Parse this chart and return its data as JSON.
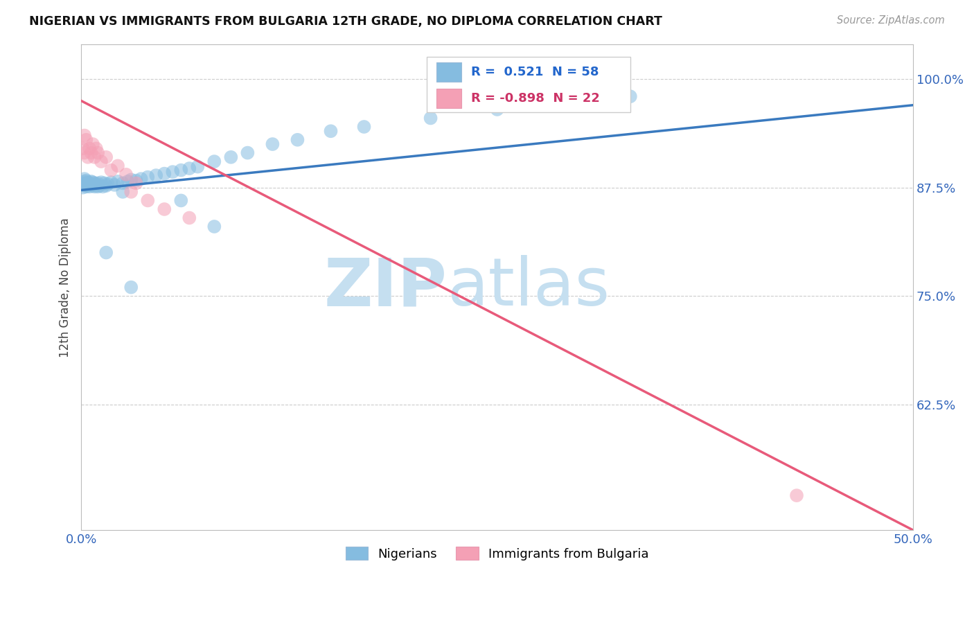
{
  "title": "NIGERIAN VS IMMIGRANTS FROM BULGARIA 12TH GRADE, NO DIPLOMA CORRELATION CHART",
  "source": "Source: ZipAtlas.com",
  "ylabel": "12th Grade, No Diploma",
  "xlim": [
    0.0,
    0.5
  ],
  "ylim": [
    0.48,
    1.04
  ],
  "xticks": [
    0.0,
    0.05,
    0.1,
    0.15,
    0.2,
    0.25,
    0.3,
    0.35,
    0.4,
    0.45,
    0.5
  ],
  "xticklabels": [
    "0.0%",
    "",
    "",
    "",
    "",
    "",
    "",
    "",
    "",
    "",
    "50.0%"
  ],
  "yticks": [
    0.625,
    0.75,
    0.875,
    1.0
  ],
  "yticklabels": [
    "62.5%",
    "75.0%",
    "87.5%",
    "100.0%"
  ],
  "grid_color": "#cccccc",
  "background_color": "#ffffff",
  "blue_color": "#85bce0",
  "pink_color": "#f4a0b5",
  "blue_line_color": "#3a7abf",
  "pink_line_color": "#e85a7a",
  "R_blue": 0.521,
  "N_blue": 58,
  "R_pink": -0.898,
  "N_pink": 22,
  "watermark_zip": "ZIP",
  "watermark_atlas": "atlas",
  "watermark_color_zip": "#b8d4ec",
  "watermark_color_atlas": "#b8d4ec",
  "legend_label_blue": "Nigerians",
  "legend_label_pink": "Immigrants from Bulgaria",
  "blue_scatter_x": [
    0.001,
    0.001,
    0.002,
    0.002,
    0.002,
    0.003,
    0.003,
    0.003,
    0.004,
    0.004,
    0.005,
    0.005,
    0.006,
    0.006,
    0.007,
    0.007,
    0.008,
    0.008,
    0.009,
    0.01,
    0.01,
    0.011,
    0.012,
    0.013,
    0.014,
    0.015,
    0.016,
    0.018,
    0.02,
    0.022,
    0.025,
    0.028,
    0.03,
    0.033,
    0.036,
    0.04,
    0.045,
    0.05,
    0.055,
    0.06,
    0.065,
    0.07,
    0.08,
    0.09,
    0.1,
    0.115,
    0.13,
    0.15,
    0.17,
    0.21,
    0.25,
    0.29,
    0.33,
    0.025,
    0.06,
    0.08,
    0.015,
    0.03
  ],
  "blue_scatter_y": [
    0.875,
    0.88,
    0.878,
    0.882,
    0.885,
    0.876,
    0.88,
    0.883,
    0.877,
    0.881,
    0.876,
    0.88,
    0.878,
    0.882,
    0.877,
    0.881,
    0.876,
    0.88,
    0.879,
    0.876,
    0.88,
    0.877,
    0.881,
    0.876,
    0.88,
    0.877,
    0.879,
    0.881,
    0.878,
    0.882,
    0.88,
    0.882,
    0.884,
    0.883,
    0.885,
    0.887,
    0.889,
    0.891,
    0.893,
    0.895,
    0.897,
    0.899,
    0.905,
    0.91,
    0.915,
    0.925,
    0.93,
    0.94,
    0.945,
    0.955,
    0.965,
    0.97,
    0.98,
    0.87,
    0.86,
    0.83,
    0.8,
    0.76
  ],
  "pink_scatter_x": [
    0.001,
    0.002,
    0.002,
    0.003,
    0.004,
    0.005,
    0.006,
    0.007,
    0.008,
    0.009,
    0.01,
    0.012,
    0.015,
    0.018,
    0.022,
    0.027,
    0.033,
    0.04,
    0.05,
    0.065,
    0.03,
    0.43
  ],
  "pink_scatter_y": [
    0.92,
    0.935,
    0.915,
    0.93,
    0.91,
    0.92,
    0.915,
    0.925,
    0.91,
    0.92,
    0.915,
    0.905,
    0.91,
    0.895,
    0.9,
    0.89,
    0.88,
    0.86,
    0.85,
    0.84,
    0.87,
    0.52
  ],
  "blue_trend_x": [
    0.0,
    0.5
  ],
  "blue_trend_y": [
    0.872,
    0.97
  ],
  "pink_trend_x": [
    0.0,
    0.5
  ],
  "pink_trend_y": [
    0.975,
    0.48
  ]
}
